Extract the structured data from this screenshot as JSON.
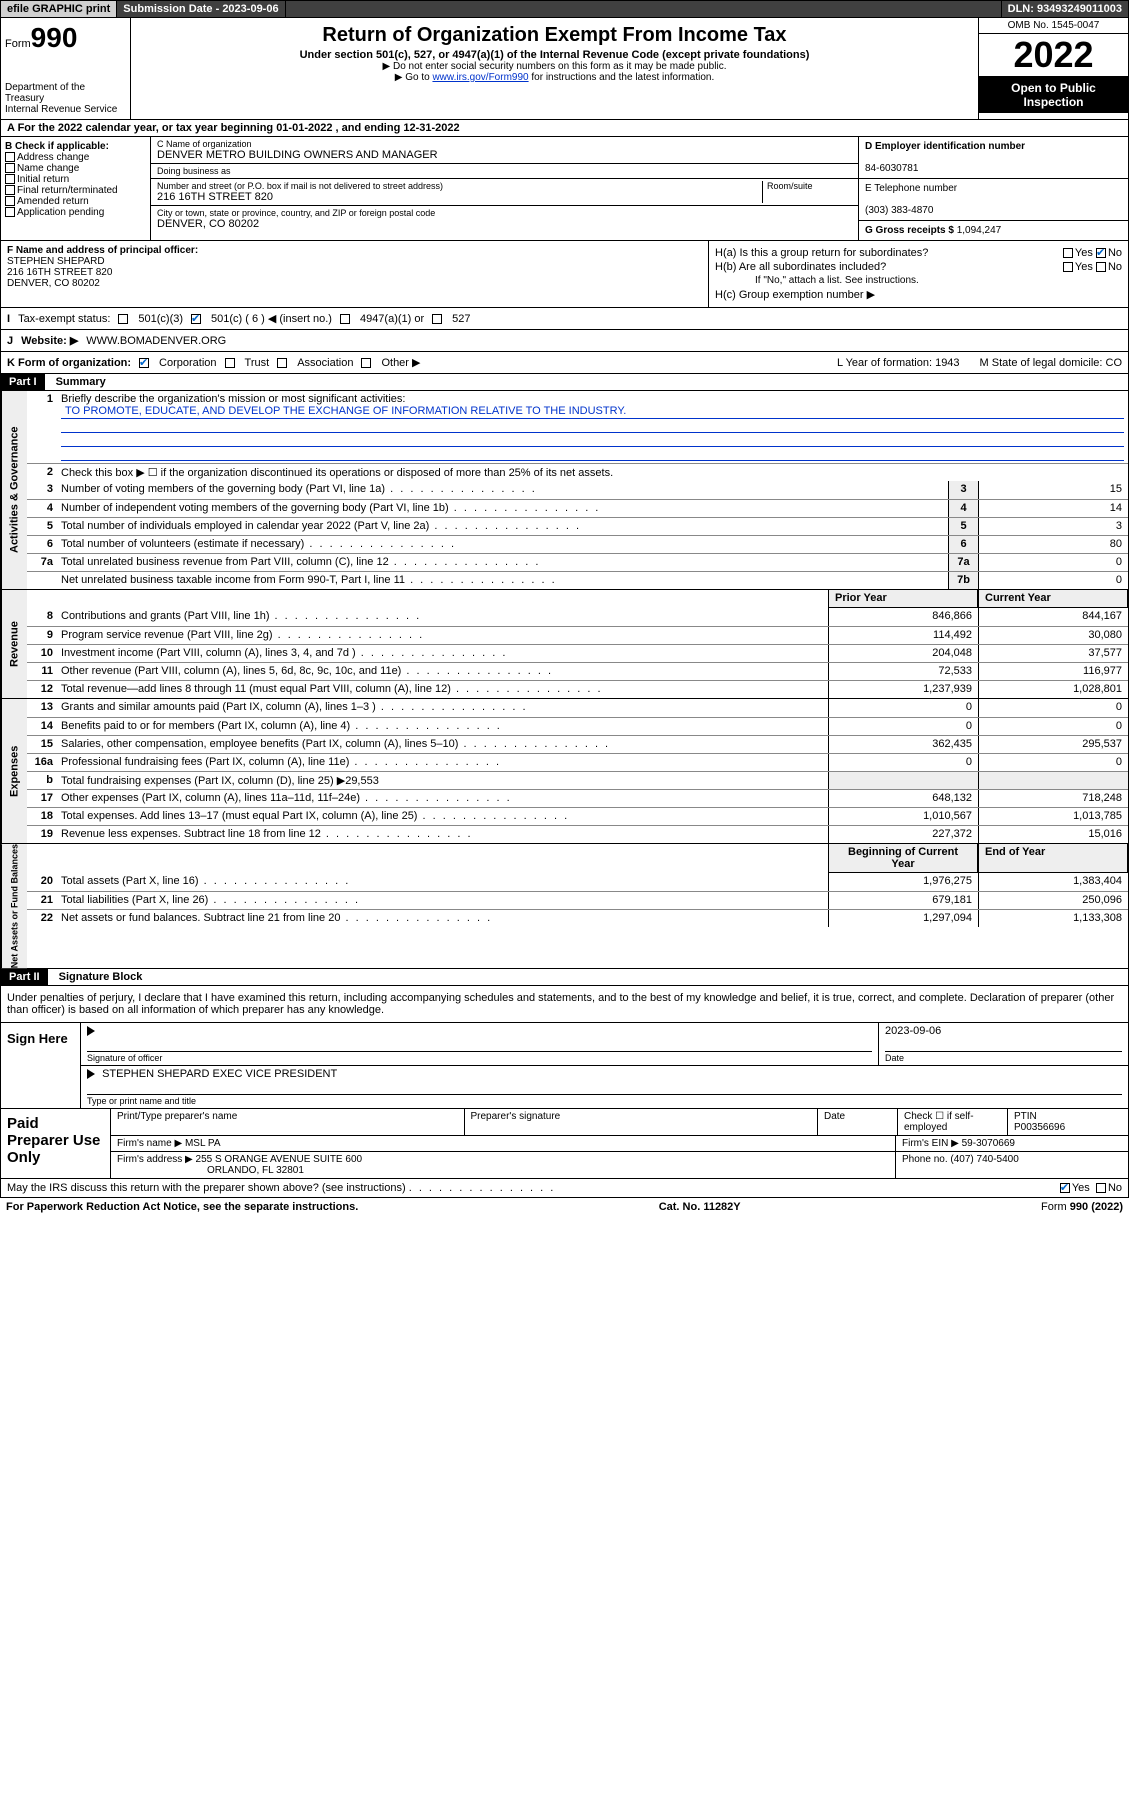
{
  "topbar": {
    "efile": "efile GRAPHIC print",
    "submission_label": "Submission Date - 2023-09-06",
    "dln": "DLN: 93493249011003"
  },
  "header": {
    "form_prefix": "Form",
    "form_no": "990",
    "dept": "Department of the Treasury",
    "irs": "Internal Revenue Service",
    "title": "Return of Organization Exempt From Income Tax",
    "sub": "Under section 501(c), 527, or 4947(a)(1) of the Internal Revenue Code (except private foundations)",
    "note1": "▶ Do not enter social security numbers on this form as it may be made public.",
    "note2_pre": "▶ Go to ",
    "note2_link": "www.irs.gov/Form990",
    "note2_post": " for instructions and the latest information.",
    "omb": "OMB No. 1545-0047",
    "year": "2022",
    "open": "Open to Public Inspection"
  },
  "row_a": "A For the 2022 calendar year, or tax year beginning 01-01-2022   , and ending 12-31-2022",
  "section_b": {
    "label": "B Check if applicable:",
    "items": [
      "Address change",
      "Name change",
      "Initial return",
      "Final return/terminated",
      "Amended return",
      "Application pending"
    ]
  },
  "section_c": {
    "name_lbl": "C Name of organization",
    "name": "DENVER METRO BUILDING OWNERS AND MANAGER",
    "dba_lbl": "Doing business as",
    "dba": "",
    "street_lbl": "Number and street (or P.O. box if mail is not delivered to street address)",
    "room_lbl": "Room/suite",
    "street": "216 16TH STREET 820",
    "city_lbl": "City or town, state or province, country, and ZIP or foreign postal code",
    "city": "DENVER, CO  80202"
  },
  "section_d": {
    "ein_lbl": "D Employer identification number",
    "ein": "84-6030781",
    "tel_lbl": "E Telephone number",
    "tel": "(303) 383-4870",
    "gross_lbl": "G Gross receipts $",
    "gross": "1,094,247"
  },
  "section_f": {
    "lbl": "F Name and address of principal officer:",
    "name": "STEPHEN SHEPARD",
    "addr1": "216 16TH STREET 820",
    "addr2": "DENVER, CO  80202"
  },
  "section_h": {
    "ha": "H(a)  Is this a group return for subordinates?",
    "hb": "H(b)  Are all subordinates included?",
    "hb_note": "If \"No,\" attach a list. See instructions.",
    "hc": "H(c)  Group exemption number ▶",
    "yes": "Yes",
    "no": "No"
  },
  "row_i": {
    "lbl": "Tax-exempt status:",
    "opts": [
      "501(c)(3)",
      "501(c) ( 6 ) ◀ (insert no.)",
      "4947(a)(1) or",
      "527"
    ]
  },
  "row_j": {
    "lbl": "Website: ▶",
    "val": "WWW.BOMADENVER.ORG"
  },
  "row_k": {
    "lbl": "K Form of organization:",
    "opts": [
      "Corporation",
      "Trust",
      "Association",
      "Other ▶"
    ],
    "l": "L Year of formation: 1943",
    "m": "M State of legal domicile: CO"
  },
  "part1": {
    "hdr": "Part I",
    "title": "Summary",
    "q1": "Briefly describe the organization's mission or most significant activities:",
    "mission": "TO PROMOTE, EDUCATE, AND DEVELOP THE EXCHANGE OF INFORMATION RELATIVE TO THE INDUSTRY.",
    "q2": "Check this box ▶ ☐  if the organization discontinued its operations or disposed of more than 25% of its net assets.",
    "lines": [
      {
        "n": "3",
        "d": "Number of voting members of the governing body (Part VI, line 1a)",
        "b": "3",
        "v": "15"
      },
      {
        "n": "4",
        "d": "Number of independent voting members of the governing body (Part VI, line 1b)",
        "b": "4",
        "v": "14"
      },
      {
        "n": "5",
        "d": "Total number of individuals employed in calendar year 2022 (Part V, line 2a)",
        "b": "5",
        "v": "3"
      },
      {
        "n": "6",
        "d": "Total number of volunteers (estimate if necessary)",
        "b": "6",
        "v": "80"
      },
      {
        "n": "7a",
        "d": "Total unrelated business revenue from Part VIII, column (C), line 12",
        "b": "7a",
        "v": "0"
      },
      {
        "n": "",
        "d": "Net unrelated business taxable income from Form 990-T, Part I, line 11",
        "b": "7b",
        "v": "0"
      }
    ],
    "col_hdrs": {
      "prior": "Prior Year",
      "current": "Current Year"
    },
    "revenue": [
      {
        "n": "8",
        "d": "Contributions and grants (Part VIII, line 1h)",
        "p": "846,866",
        "c": "844,167"
      },
      {
        "n": "9",
        "d": "Program service revenue (Part VIII, line 2g)",
        "p": "114,492",
        "c": "30,080"
      },
      {
        "n": "10",
        "d": "Investment income (Part VIII, column (A), lines 3, 4, and 7d )",
        "p": "204,048",
        "c": "37,577"
      },
      {
        "n": "11",
        "d": "Other revenue (Part VIII, column (A), lines 5, 6d, 8c, 9c, 10c, and 11e)",
        "p": "72,533",
        "c": "116,977"
      },
      {
        "n": "12",
        "d": "Total revenue—add lines 8 through 11 (must equal Part VIII, column (A), line 12)",
        "p": "1,237,939",
        "c": "1,028,801"
      }
    ],
    "expenses": [
      {
        "n": "13",
        "d": "Grants and similar amounts paid (Part IX, column (A), lines 1–3 )",
        "p": "0",
        "c": "0"
      },
      {
        "n": "14",
        "d": "Benefits paid to or for members (Part IX, column (A), line 4)",
        "p": "0",
        "c": "0"
      },
      {
        "n": "15",
        "d": "Salaries, other compensation, employee benefits (Part IX, column (A), lines 5–10)",
        "p": "362,435",
        "c": "295,537"
      },
      {
        "n": "16a",
        "d": "Professional fundraising fees (Part IX, column (A), line 11e)",
        "p": "0",
        "c": "0"
      },
      {
        "n": "b",
        "d": "Total fundraising expenses (Part IX, column (D), line 25) ▶29,553",
        "p": "",
        "c": ""
      },
      {
        "n": "17",
        "d": "Other expenses (Part IX, column (A), lines 11a–11d, 11f–24e)",
        "p": "648,132",
        "c": "718,248"
      },
      {
        "n": "18",
        "d": "Total expenses. Add lines 13–17 (must equal Part IX, column (A), line 25)",
        "p": "1,010,567",
        "c": "1,013,785"
      },
      {
        "n": "19",
        "d": "Revenue less expenses. Subtract line 18 from line 12",
        "p": "227,372",
        "c": "15,016"
      }
    ],
    "net_hdrs": {
      "begin": "Beginning of Current Year",
      "end": "End of Year"
    },
    "net": [
      {
        "n": "20",
        "d": "Total assets (Part X, line 16)",
        "p": "1,976,275",
        "c": "1,383,404"
      },
      {
        "n": "21",
        "d": "Total liabilities (Part X, line 26)",
        "p": "679,181",
        "c": "250,096"
      },
      {
        "n": "22",
        "d": "Net assets or fund balances. Subtract line 21 from line 20",
        "p": "1,297,094",
        "c": "1,133,308"
      }
    ],
    "vlabels": {
      "gov": "Activities & Governance",
      "rev": "Revenue",
      "exp": "Expenses",
      "net": "Net Assets or Fund Balances"
    }
  },
  "part2": {
    "hdr": "Part II",
    "title": "Signature Block",
    "decl": "Under penalties of perjury, I declare that I have examined this return, including accompanying schedules and statements, and to the best of my knowledge and belief, it is true, correct, and complete. Declaration of preparer (other than officer) is based on all information of which preparer has any knowledge.",
    "sign_here": "Sign Here",
    "sig_officer": "Signature of officer",
    "date_lbl": "Date",
    "date": "2023-09-06",
    "name": "STEPHEN SHEPARD  EXEC VICE PRESIDENT",
    "name_lbl": "Type or print name and title"
  },
  "prep": {
    "title": "Paid Preparer Use Only",
    "h1": "Print/Type preparer's name",
    "h2": "Preparer's signature",
    "h3": "Date",
    "h4_pre": "Check ☐ if self-employed",
    "h5": "PTIN",
    "ptin": "P00356696",
    "firm_name_lbl": "Firm's name   ▶",
    "firm_name": "MSL PA",
    "firm_ein_lbl": "Firm's EIN ▶",
    "firm_ein": "59-3070669",
    "firm_addr_lbl": "Firm's address ▶",
    "firm_addr1": "255 S ORANGE AVENUE SUITE 600",
    "firm_addr2": "ORLANDO, FL  32801",
    "phone_lbl": "Phone no.",
    "phone": "(407) 740-5400"
  },
  "footer": {
    "discuss": "May the IRS discuss this return with the preparer shown above? (see instructions)",
    "yes": "Yes",
    "no": "No",
    "paperwork": "For Paperwork Reduction Act Notice, see the separate instructions.",
    "cat": "Cat. No. 11282Y",
    "form": "Form 990 (2022)"
  }
}
